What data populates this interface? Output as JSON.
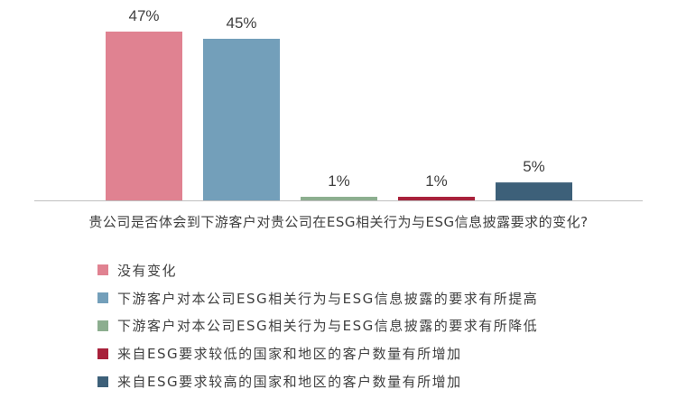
{
  "chart_data": {
    "type": "bar",
    "title": "贵公司是否体会到下游客户对贵公司在ESG相关行为与ESG信息披露要求的变化?",
    "categories": [
      "没有变化",
      "下游客户对本公司ESG相关行为与ESG信息披露的要求有所提高",
      "下游客户对本公司ESG相关行为与ESG信息披露的要求有所降低",
      "来自ESG要求较低的国家和地区的客户数量有所增加",
      "来自ESG要求较高的国家和地区的客户数量有所增加"
    ],
    "values": [
      47,
      45,
      1,
      1,
      5
    ],
    "data_labels": [
      "47%",
      "45%",
      "1%",
      "1%",
      "5%"
    ],
    "colors": [
      "#E08291",
      "#739FBA",
      "#8CAE8F",
      "#A8203A",
      "#3D6079"
    ],
    "ylim": [
      0,
      50
    ],
    "grid": false,
    "legend_position": "bottom"
  }
}
